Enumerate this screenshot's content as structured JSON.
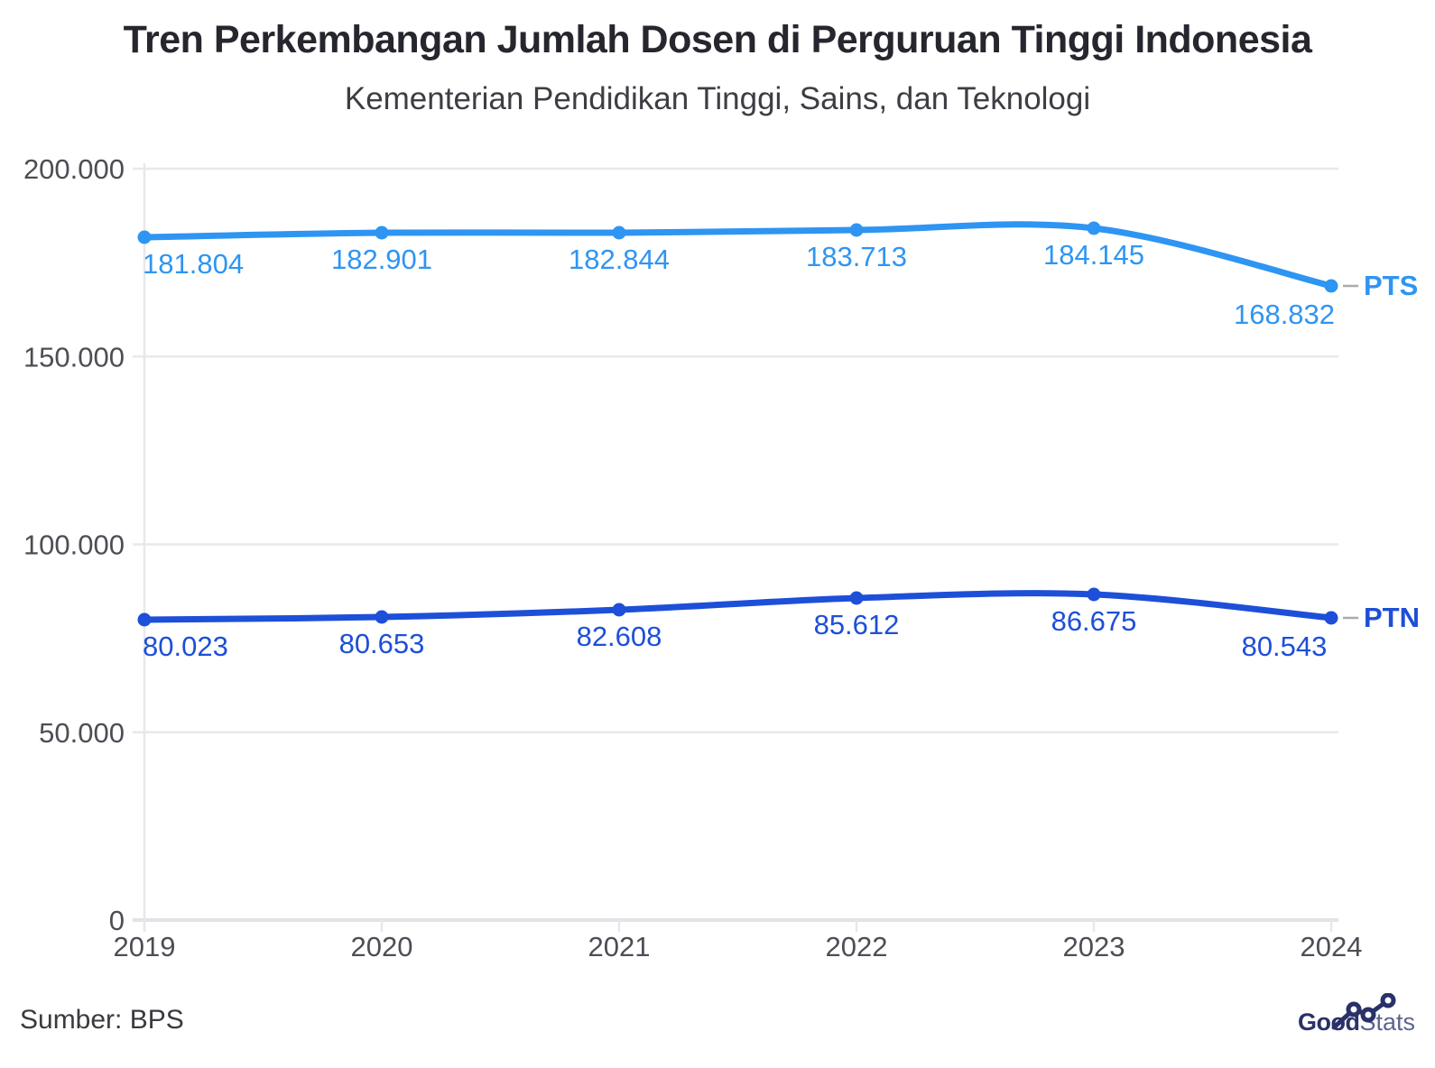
{
  "page": {
    "title": "Tren Perkembangan Jumlah Dosen di Perguruan Tinggi Indonesia",
    "subtitle": "Kementerian Pendidikan Tinggi, Sains, dan Teknologi",
    "source": "Sumber: BPS"
  },
  "logo": {
    "bold": "Good",
    "light": "Stats",
    "icon": "rising-line-chart-sparkline",
    "color_bold": "#2a3168",
    "color_light": "#5d6490"
  },
  "chart_data": {
    "type": "line",
    "title": "Tren Perkembangan Jumlah Dosen di Perguruan Tinggi Indonesia",
    "subtitle": "Kementerian Pendidikan Tinggi, Sains, dan Teknologi",
    "x_labels": [
      "2019",
      "2020",
      "2021",
      "2022",
      "2023",
      "2024"
    ],
    "series": [
      {
        "name": "PTS",
        "color": "#2e95f2",
        "values": [
          181804,
          182901,
          182844,
          183713,
          184145,
          168832
        ],
        "point_labels": [
          "181.804",
          "182.901",
          "182.844",
          "183.713",
          "184.145",
          "168.832"
        ]
      },
      {
        "name": "PTN",
        "color": "#1d4fd8",
        "values": [
          80023,
          80653,
          82608,
          85612,
          86675,
          80543
        ],
        "point_labels": [
          "80.023",
          "80.653",
          "82.608",
          "85.612",
          "86.675",
          "80.543"
        ]
      }
    ],
    "y_ticks": [
      {
        "value": 200000,
        "label": "200.000"
      },
      {
        "value": 150000,
        "label": "150.000"
      },
      {
        "value": 100000,
        "label": "100.000"
      },
      {
        "value": 50000,
        "label": "50.000"
      },
      {
        "value": 0,
        "label": "0"
      }
    ],
    "ylim": [
      0,
      200000
    ],
    "grid": true,
    "legend_position": "line-end",
    "style": {
      "grid_color": "#e8e8ec",
      "zero_line_color": "#e3e3e7",
      "axis_text_color": "#4d4d55",
      "connector_color": "#a9a9af"
    }
  }
}
